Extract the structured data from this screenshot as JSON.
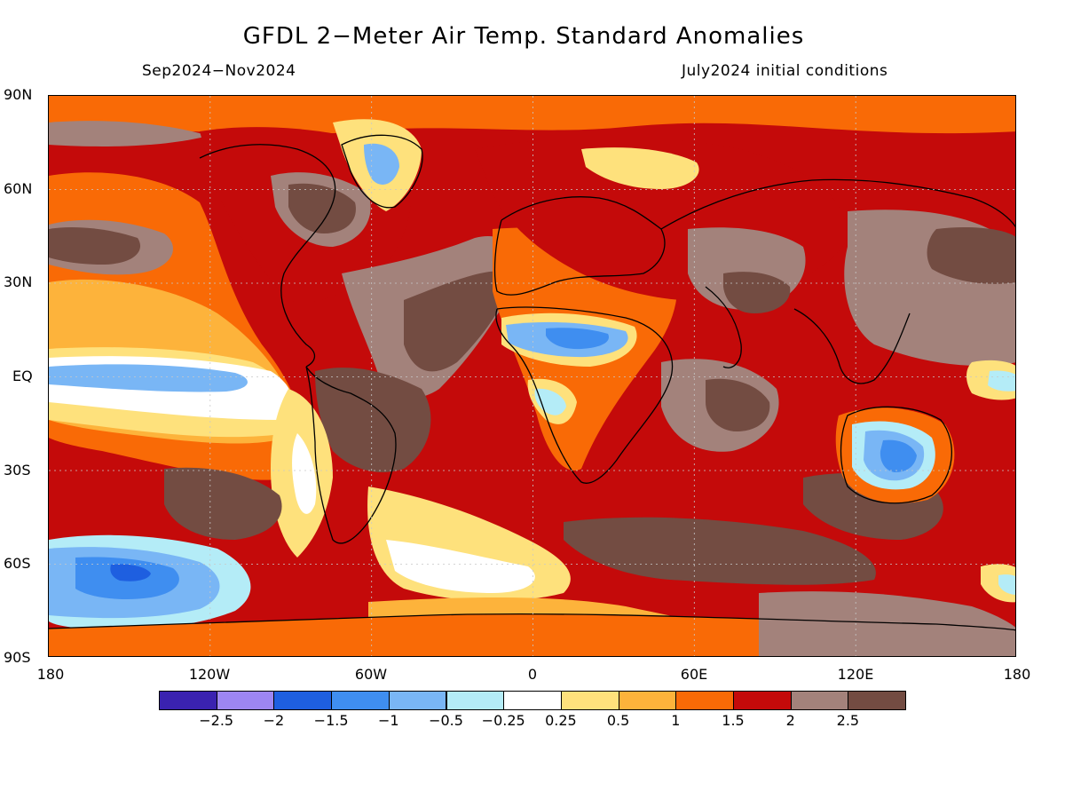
{
  "title": "GFDL 2−Meter Air Temp. Standard Anomalies",
  "period": "Sep2024−Nov2024",
  "init": "July2024 initial conditions",
  "lat_labels": [
    "90N",
    "60N",
    "30N",
    "EQ",
    "30S",
    "60S",
    "90S"
  ],
  "lon_labels": [
    "180",
    "120W",
    "60W",
    "0",
    "60E",
    "120E",
    "180"
  ],
  "colorbar": {
    "colors": [
      "#3a22b0",
      "#9d86f2",
      "#1e5fe0",
      "#3f8ef0",
      "#79b6f5",
      "#b4ecf7",
      "#ffffff",
      "#fee17c",
      "#fdb33b",
      "#f96a06",
      "#c40a0a",
      "#a3827b",
      "#734c42"
    ],
    "labels": [
      "−2.5",
      "−2",
      "−1.5",
      "−1",
      "−0.5",
      "−0.25",
      "0.25",
      "0.5",
      "1",
      "1.5",
      "2",
      "2.5"
    ]
  },
  "map_colors": {
    "ocean_base": "#c40a0a",
    "brown": "#734c42",
    "light_brown": "#a3827b",
    "orange": "#f96a06",
    "light_orange": "#fdb33b",
    "yellow": "#fee17c",
    "white": "#ffffff",
    "light_blue": "#b4ecf7",
    "blue": "#79b6f5",
    "mid_blue": "#3f8ef0",
    "dark_blue": "#1e5fe0"
  }
}
